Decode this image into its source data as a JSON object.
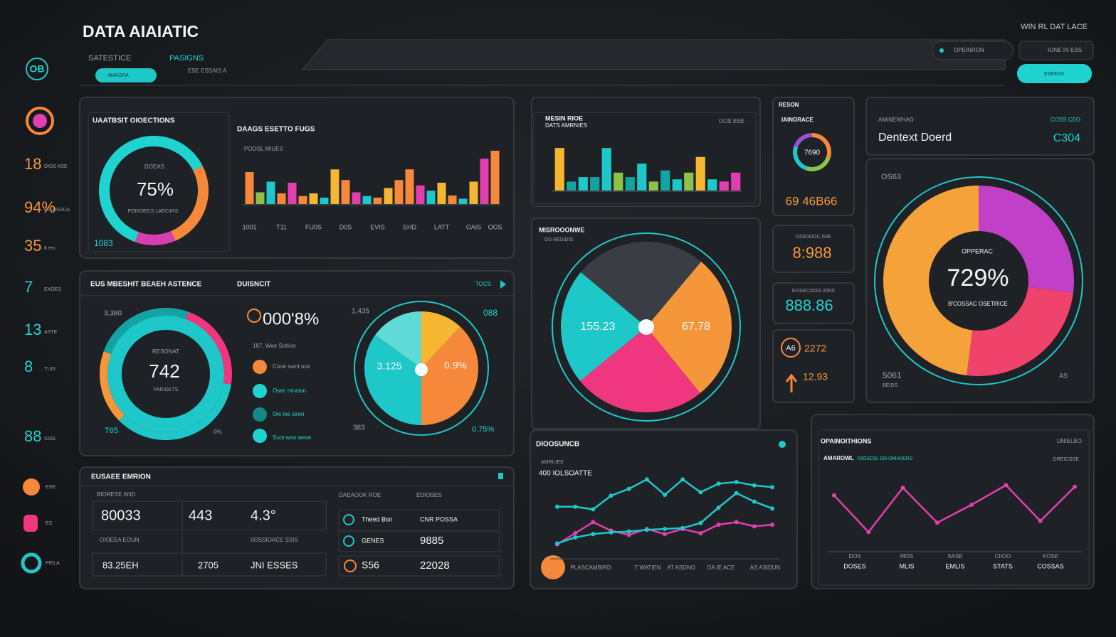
{
  "header": {
    "title": "DATA AIAIATIC",
    "tab_1": "SATESTICE",
    "tab_2": "PASIGNS",
    "button": "AMASRA",
    "crumb": "ESE ESSAIS A",
    "top_right": "WIN RL DAT LACE",
    "search": "OPEINRON",
    "menu": "IONE IN ESS",
    "action": "ESEEAS"
  },
  "sidebar": {
    "logo": "OB",
    "items": [
      {
        "value": "18",
        "label": "DIOS ASE"
      },
      {
        "value": "94%",
        "label": "RS OSSUA"
      },
      {
        "value": "35",
        "label": "6 em"
      },
      {
        "value": "7",
        "label": "EXOES"
      },
      {
        "value": "13",
        "label": "ASTE"
      },
      {
        "value": "8",
        "label": "TUIS"
      },
      {
        "value": "88",
        "label": "SSIS"
      }
    ],
    "buttons": [
      "ESE",
      "ES",
      "PIELA"
    ]
  },
  "objections": {
    "title": "UAATBSIT OIOECTIONS",
    "donut_caption": "DOEAS",
    "donut_value": "75%",
    "donut_sub": "PONOIECS LAECIIRS",
    "footer": "1083",
    "bar_title": "DAAGS ESETTO FUGS",
    "bar_sub": "POOSL MIUES"
  },
  "reach": {
    "title": "EUS MBESHIT BEAEH ASTENCE",
    "subtitle": "DUISNCIT",
    "link": "TOCS",
    "donut_caption": "RESONAT",
    "donut_value": "742",
    "donut_sub": "PARIOETS",
    "corner_1": "3,380",
    "corner_2": "T65",
    "corner_3": "0%",
    "legend_title": "000'8%",
    "legend_sub": "187, Wee Sotiion",
    "legend": [
      "Cooe swnt nos",
      "Osec mnaion",
      "Ow ine siron",
      "Suot woo wese"
    ],
    "pie_corners": [
      "1,435",
      "088",
      "383",
      "0.75%"
    ],
    "pie_slice_labels": [
      "3.125",
      "0.9%"
    ]
  },
  "emission": {
    "title": "EUSAEE EMRION",
    "head": "BIORESE AND",
    "cells": [
      "80033",
      "443",
      "4.3°"
    ],
    "sub_1": "OIOEEA EOUN",
    "sub_2": "IIOSSIOACE SSIS",
    "row_2": [
      "83.25EH",
      "2705",
      "JNI ESSES"
    ],
    "head_a": "DAEAOOK ROE",
    "head_b": "EDIOSES",
    "rows": [
      [
        "Theed Bsn",
        "CNR POSSA"
      ],
      [
        "GENES",
        "9885"
      ],
      [
        "S56",
        "22028"
      ]
    ]
  },
  "mini_bars": {
    "title": "MESIN RIOE",
    "subtitle": "DATS AMRNIES",
    "corner": "OOS ESE"
  },
  "ring": {
    "header": "RESON",
    "title": "IAINORACE",
    "center": "7690",
    "value": "69 46B66"
  },
  "dentext": {
    "label": "AMINEWHAD",
    "title": "Dentext Doerd",
    "tag": "COSS CEO",
    "value": "C304"
  },
  "big_pie": {
    "title": "MISROOONWE",
    "subtitle": "OS RESIDIS",
    "left": "155.23",
    "right": "67.78"
  },
  "stats": {
    "stat_1_label": "OOIOOOC ISIE",
    "stat_1": "8:988",
    "stat_2_label": "EOSECOOG IONS",
    "stat_2": "888.86",
    "badge": "A6",
    "stat_3": "2272",
    "stat_4": "12.93"
  },
  "big_donut": {
    "corner": "OS63",
    "caption": "OPPERAC",
    "value": "729%",
    "sub": "B'COSSAC OSETRICE",
    "bottom_left": "5061",
    "bottom_left_sub": "BEIDS",
    "bottom_right": "AS"
  },
  "line_1": {
    "title": "DIOOSUNCB",
    "sub": "AMRIUEE",
    "axis": "400 IOLSOATTE",
    "x_labels": [
      "PLASCAMBIRD",
      "T WATIEN",
      "AT ASDNO",
      "DA IE ACE",
      "AS ASIDUN"
    ]
  },
  "line_2": {
    "title": "OPAINOITHIONS",
    "sub": "AMAROWL",
    "sub_2": "DIOSOSI SO OMIAIERS",
    "corner": "UNIELEO",
    "corner_2": "DREICOSE",
    "x_labels": [
      "DOS",
      "MOS",
      "SASE",
      "CIIOO",
      "KOSE"
    ],
    "x_sub": [
      "DOSES",
      "MLIS",
      "EMLIS",
      "STATS",
      "COSSAS"
    ]
  },
  "chart_data": [
    {
      "type": "bar",
      "values": [
        60,
        22,
        42,
        20,
        40,
        15,
        20,
        12,
        65,
        45,
        22,
        15,
        12,
        30,
        45,
        65,
        35,
        25,
        40,
        16,
        10,
        42,
        85,
        100
      ],
      "colors": [
        "#f5883b",
        "#8bc34a",
        "#1fc8c8",
        "#f5883b",
        "#e23fae",
        "#f5883b",
        "#f5b731",
        "#1fc8c8",
        "#f5b731",
        "#f5883b",
        "#e23fae",
        "#1fc8c8",
        "#f5883b",
        "#f5b731",
        "#f5883b",
        "#f5883b",
        "#e23fae",
        "#1fc8c8",
        "#f5b731",
        "#f5883b",
        "#1fc8c8",
        "#f5b731",
        "#e23fae",
        "#f5883b"
      ],
      "categories": [
        "1001",
        null,
        null,
        "T11",
        null,
        null,
        "FU0S",
        null,
        null,
        "D0S",
        null,
        null,
        "EVIS",
        null,
        null,
        "SHD",
        null,
        null,
        "LATT",
        null,
        null,
        "OAIS",
        null,
        "OOS"
      ],
      "ylim": [
        0,
        100
      ]
    },
    {
      "type": "donut",
      "values": [
        62,
        26,
        12
      ],
      "colors": [
        "#1fd3cf",
        "#f5883b",
        "#d63fb0"
      ]
    },
    {
      "type": "donut",
      "values": [
        22,
        35,
        18,
        25
      ],
      "colors": [
        "#f0367e",
        "#1fc8c8",
        "#f5963b",
        "#14a3a3"
      ]
    },
    {
      "type": "pie",
      "values": [
        12,
        38,
        35,
        15
      ],
      "colors": [
        "#f5b731",
        "#f5883b",
        "#1fc8c8",
        "#5fdad6"
      ]
    },
    {
      "type": "bar",
      "values": [
        95,
        20,
        30,
        30,
        95,
        40,
        30,
        60,
        20,
        45,
        25,
        40,
        75,
        25,
        20,
        40
      ],
      "colors": [
        "#f5b731",
        "#14a3a3",
        "#1fc8c8",
        "#14a3a3",
        "#1fc8c8",
        "#8bc34a",
        "#14a3a3",
        "#1fc8c8",
        "#8bc34a",
        "#14a3a3",
        "#1fc8c8",
        "#8bc34a",
        "#f5b731",
        "#1fc8c8",
        "#e23fae",
        "#e23fae"
      ],
      "ylim": [
        0,
        100
      ]
    },
    {
      "type": "donut",
      "values": [
        30,
        25,
        25,
        20
      ],
      "colors": [
        "#f5883b",
        "#8bc34a",
        "#1fc8c8",
        "#9b4fd6"
      ]
    },
    {
      "type": "pie",
      "values": [
        25,
        28,
        25,
        22
      ],
      "colors": [
        "#3a3e44",
        "#f5963b",
        "#f0367e",
        "#1fc8c8"
      ]
    },
    {
      "type": "donut",
      "values": [
        27,
        25,
        48
      ],
      "colors": [
        "#c23fc8",
        "#f0436b",
        "#f5a23b"
      ]
    },
    {
      "type": "line",
      "ylim": [
        0,
        100
      ],
      "series": [
        {
          "color": "#1fc8c8",
          "values": [
            56,
            56,
            53,
            69,
            77,
            88,
            70,
            88,
            73,
            83,
            85,
            81,
            79
          ]
        },
        {
          "color": "#e23fae",
          "values": [
            12,
            25,
            38,
            28,
            23,
            30,
            24,
            30,
            25,
            35,
            38,
            33,
            35
          ]
        },
        {
          "color": "#1fc8c8",
          "values": [
            13,
            20,
            24,
            26,
            27,
            29,
            30,
            31,
            37,
            55,
            72,
            62,
            54
          ]
        }
      ]
    },
    {
      "type": "line",
      "ylim": [
        0,
        100
      ],
      "series": [
        {
          "color": "#e23fae",
          "values": [
            61,
            18,
            70,
            29,
            50,
            73,
            31,
            71
          ]
        }
      ]
    }
  ]
}
